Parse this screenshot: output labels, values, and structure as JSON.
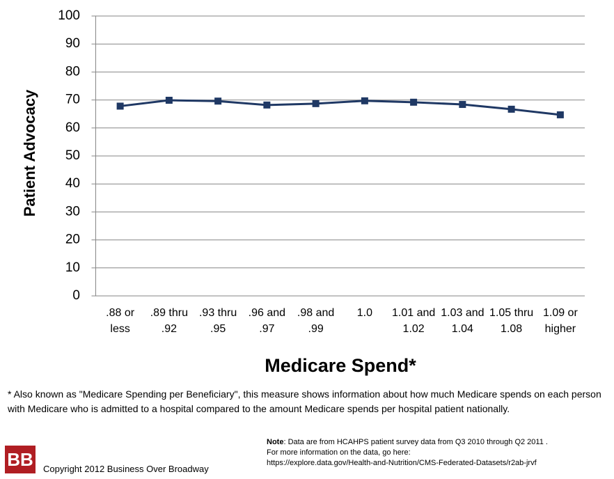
{
  "chart_data": {
    "type": "line",
    "y_label": "Patient Advocacy",
    "x_label": "Medicare Spend*",
    "categories": [
      ".88 or less",
      ".89 thru .92",
      ".93 thru .95",
      ".96 and .97",
      ".98 and .99",
      "1.0",
      "1.01 and 1.02",
      "1.03 and 1.04",
      "1.05 thru 1.08",
      "1.09 or higher"
    ],
    "series": [
      {
        "name": "Patient Advocacy",
        "color": "#1f3864",
        "values": [
          67.8,
          69.9,
          69.6,
          68.2,
          68.7,
          69.7,
          69.2,
          68.4,
          66.7,
          64.7
        ]
      }
    ],
    "ylim": [
      0,
      100
    ],
    "yticks": [
      0,
      10,
      20,
      30,
      40,
      50,
      60,
      70,
      80,
      90,
      100
    ],
    "grid": true
  },
  "footnote": "* Also known as \"Medicare Spending per Beneficiary\", this measure shows information about how much Medicare spends on each person with Medicare who is admitted to a hospital compared to the amount Medicare spends per hospital patient nationally.",
  "note": {
    "label": "Note",
    "text": ": Data are from HCAHPS patient survey data from Q3 2010 through Q2 2011 .",
    "more": "For more information on the data, go here:",
    "url": "https://explore.data.gov/Health-and-Nutrition/CMS-Federated-Datasets/r2ab-jrvf"
  },
  "logo": "BB",
  "copyright": "Copyright 2012 Business Over Broadway"
}
